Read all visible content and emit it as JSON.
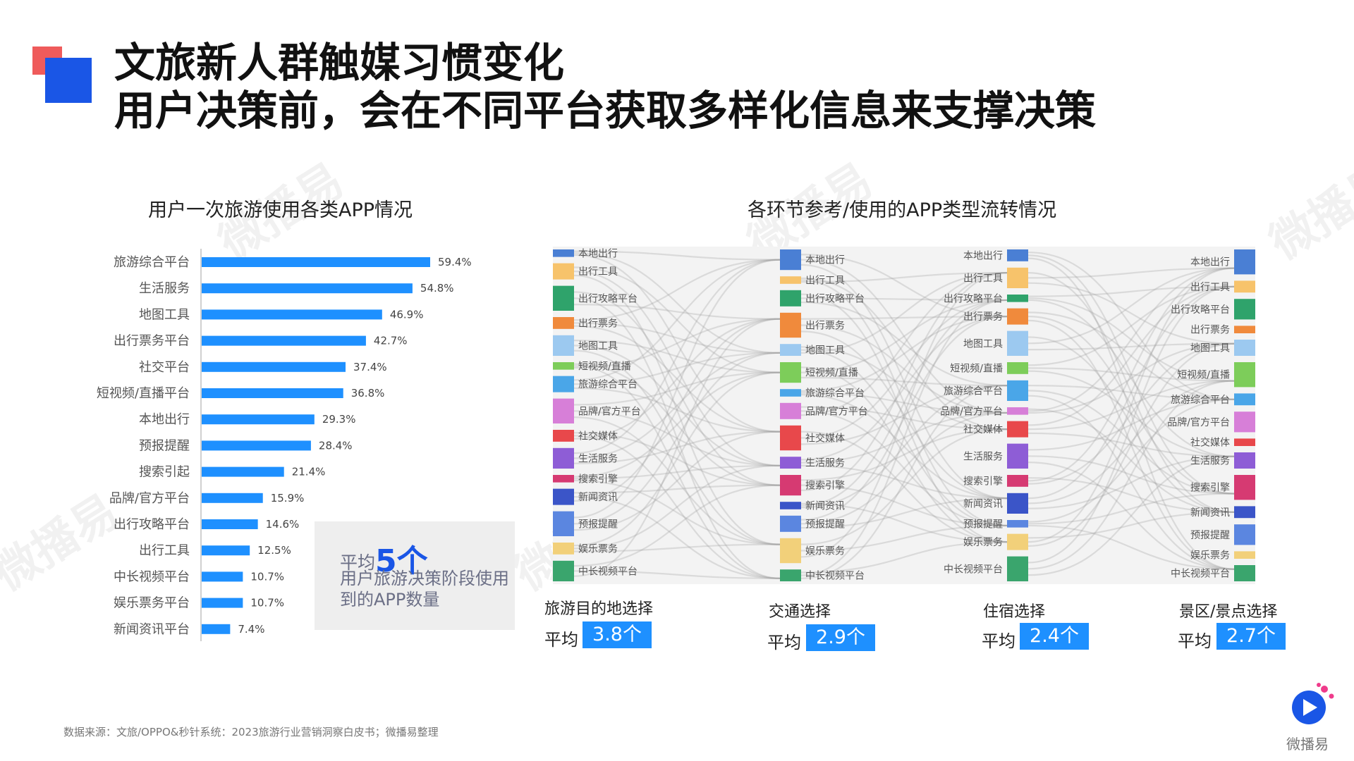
{
  "title_line1": "文旅新人群触媒习惯变化",
  "title_line2": "用户决策前，会在不同平台获取多样化信息来支撑决策",
  "watermark": "微播易",
  "source": "数据来源：文旅/OPPO&秒针系统：2023旅游行业营销洞察白皮书；微播易整理",
  "brand_name": "微播易",
  "average_box": {
    "prefix": "平均",
    "value": "5个",
    "description": "用户旅游决策阶段使用到的APP数量"
  },
  "colors": {
    "accent_blue": "#1a56e6",
    "bar_blue": "#1e90ff",
    "deco_red": "#ef5b5b"
  },
  "chart_data": [
    {
      "type": "bar",
      "orientation": "horizontal",
      "title": "用户一次旅游使用各类APP情况",
      "categories": [
        "旅游综合平台",
        "生活服务",
        "地图工具",
        "出行票务平台",
        "社交平台",
        "短视频/直播平台",
        "本地出行",
        "预报提醒",
        "搜索引起",
        "品牌/官方平台",
        "出行攻略平台",
        "出行工具",
        "中长视频平台",
        "娱乐票务平台",
        "新闻资讯平台"
      ],
      "values": [
        59.4,
        54.8,
        46.9,
        42.7,
        37.4,
        36.8,
        29.3,
        28.4,
        21.4,
        15.9,
        14.6,
        12.5,
        10.7,
        10.7,
        7.4
      ],
      "value_labels": [
        "59.4%",
        "54.8%",
        "46.9%",
        "42.7%",
        "37.4%",
        "36.8%",
        "29.3%",
        "28.4%",
        "21.4%",
        "15.9%",
        "14.6%",
        "12.5%",
        "10.7%",
        "10.7%",
        "7.4%"
      ],
      "xlim": [
        0,
        100
      ],
      "grid": false,
      "color": "#1e90ff"
    },
    {
      "type": "sankey",
      "title": "各环节参考/使用的APP类型流转情况",
      "stages": [
        {
          "name": "旅游目的地选择",
          "avg_prefix": "平均",
          "avg": "3.8个"
        },
        {
          "name": "交通选择",
          "avg_prefix": "平均",
          "avg": "2.9个"
        },
        {
          "name": "住宿选择",
          "avg_prefix": "平均",
          "avg": "2.4个"
        },
        {
          "name": "景区/景点选择",
          "avg_prefix": "平均",
          "avg": "2.7个"
        }
      ],
      "node_labels": [
        [
          "本地出行",
          "出行工具",
          "出行攻略平台",
          "出行票务",
          "地图工具",
          "短视频/直播",
          "旅游综合平台",
          "品牌/官方平台",
          "社交媒体",
          "生活服务",
          "搜索引擎",
          "新闻资讯",
          "预报提醒",
          "娱乐票务",
          "中长视频平台"
        ],
        [
          "本地出行",
          "出行工具",
          "出行攻略平台",
          "出行票务",
          "地图工具",
          "短视频/直播",
          "旅游综合平台",
          "品牌/官方平台",
          "社交媒体",
          "生活服务",
          "搜索引擎",
          "新闻资讯",
          "预报提醒",
          "娱乐票务",
          "中长视频平台"
        ],
        [
          "本地出行",
          "出行工具",
          "出行攻略平台",
          "出行票务",
          "地图工具",
          "短视频/直播",
          "旅游综合平台",
          "品牌/官方平台",
          "社交媒体",
          "生活服务",
          "搜索引擎",
          "新闻资讯",
          "预报提醒",
          "娱乐票务",
          "中长视频平台"
        ],
        [
          "本地出行",
          "出行工具",
          "出行攻略平台",
          "出行票务",
          "地图工具",
          "短视频/直播",
          "旅游综合平台",
          "品牌/官方平台",
          "社交媒体",
          "生活服务",
          "搜索引擎",
          "新闻资讯",
          "预报提醒",
          "娱乐票务",
          "中长视频平台"
        ]
      ],
      "node_colors": [
        "#4a7fd4",
        "#f7c36b",
        "#2fa36b",
        "#f08a3c",
        "#9cc9f0",
        "#7dcd5a",
        "#4aa6e8",
        "#d77fd8",
        "#e8484b",
        "#8e5dd6",
        "#d63a72",
        "#3b55c8",
        "#5b86e0",
        "#f2d07a",
        "#3aa56d"
      ]
    }
  ]
}
